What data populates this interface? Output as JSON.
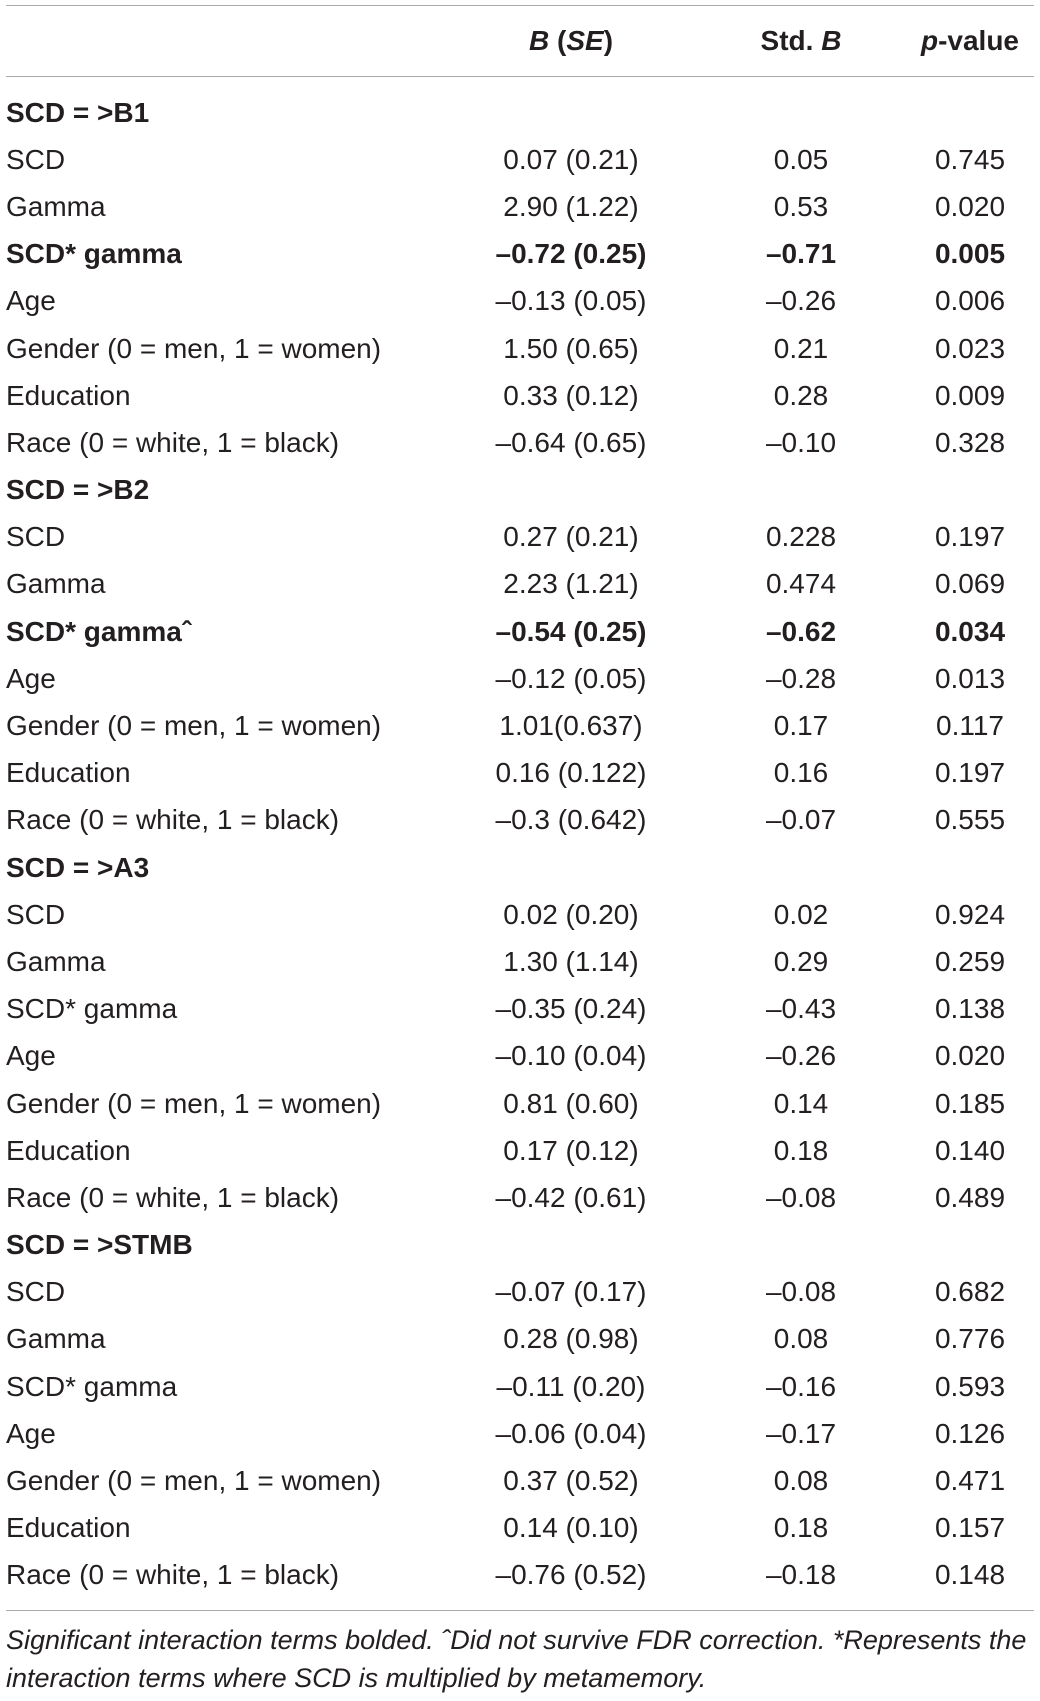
{
  "table": {
    "columns": [
      {
        "parts": []
      },
      {
        "parts": [
          {
            "text": "B",
            "italic": true
          },
          {
            "text": " ("
          },
          {
            "text": "SE",
            "italic": true
          },
          {
            "text": ")"
          }
        ]
      },
      {
        "parts": [
          {
            "text": "Std. "
          },
          {
            "text": "B",
            "italic": true
          }
        ]
      },
      {
        "parts": [
          {
            "text": "p",
            "italic": true
          },
          {
            "text": "-value"
          }
        ]
      }
    ],
    "sections": [
      {
        "title": "SCD = >B1",
        "rows": [
          {
            "label": "SCD",
            "b_se": "0.07 (0.21)",
            "std_b": "0.05",
            "p": "0.745"
          },
          {
            "label": "Gamma",
            "b_se": "2.90 (1.22)",
            "std_b": "0.53",
            "p": "0.020"
          },
          {
            "label": "SCD* gamma",
            "b_se": "–0.72 (0.25)",
            "std_b": "–0.71",
            "p": "0.005",
            "bold": true
          },
          {
            "label": "Age",
            "b_se": "–0.13 (0.05)",
            "std_b": "–0.26",
            "p": "0.006"
          },
          {
            "label": "Gender (0 = men, 1 = women)",
            "b_se": "1.50 (0.65)",
            "std_b": "0.21",
            "p": "0.023"
          },
          {
            "label": "Education",
            "b_se": "0.33 (0.12)",
            "std_b": "0.28",
            "p": "0.009"
          },
          {
            "label": "Race (0 = white, 1 = black)",
            "b_se": "–0.64 (0.65)",
            "std_b": "–0.10",
            "p": "0.328"
          }
        ]
      },
      {
        "title": "SCD = >B2",
        "rows": [
          {
            "label": "SCD",
            "b_se": "0.27 (0.21)",
            "std_b": "0.228",
            "p": "0.197"
          },
          {
            "label": "Gamma",
            "b_se": "2.23 (1.21)",
            "std_b": "0.474",
            "p": "0.069"
          },
          {
            "label": "SCD* gammaˆ",
            "b_se": "–0.54 (0.25)",
            "std_b": "–0.62",
            "p": "0.034",
            "bold": true
          },
          {
            "label": "Age",
            "b_se": "–0.12 (0.05)",
            "std_b": "–0.28",
            "p": "0.013"
          },
          {
            "label": "Gender (0 = men, 1 = women)",
            "b_se": "1.01(0.637)",
            "std_b": "0.17",
            "p": "0.117"
          },
          {
            "label": "Education",
            "b_se": "0.16 (0.122)",
            "std_b": "0.16",
            "p": "0.197"
          },
          {
            "label": "Race (0 = white, 1 = black)",
            "b_se": "–0.3 (0.642)",
            "std_b": "–0.07",
            "p": "0.555"
          }
        ]
      },
      {
        "title": "SCD = >A3",
        "rows": [
          {
            "label": "SCD",
            "b_se": "0.02 (0.20)",
            "std_b": "0.02",
            "p": "0.924"
          },
          {
            "label": "Gamma",
            "b_se": "1.30 (1.14)",
            "std_b": "0.29",
            "p": "0.259"
          },
          {
            "label": "SCD* gamma",
            "b_se": "–0.35 (0.24)",
            "std_b": "–0.43",
            "p": "0.138"
          },
          {
            "label": "Age",
            "b_se": "–0.10 (0.04)",
            "std_b": "–0.26",
            "p": "0.020"
          },
          {
            "label": "Gender (0 = men, 1 = women)",
            "b_se": "0.81 (0.60)",
            "std_b": "0.14",
            "p": "0.185"
          },
          {
            "label": "Education",
            "b_se": "0.17 (0.12)",
            "std_b": "0.18",
            "p": "0.140"
          },
          {
            "label": "Race (0 = white, 1 = black)",
            "b_se": "–0.42 (0.61)",
            "std_b": "–0.08",
            "p": "0.489"
          }
        ]
      },
      {
        "title": "SCD = >STMB",
        "rows": [
          {
            "label": "SCD",
            "b_se": "–0.07 (0.17)",
            "std_b": "–0.08",
            "p": "0.682"
          },
          {
            "label": "Gamma",
            "b_se": "0.28 (0.98)",
            "std_b": "0.08",
            "p": "0.776"
          },
          {
            "label": "SCD* gamma",
            "b_se": "–0.11 (0.20)",
            "std_b": "–0.16",
            "p": "0.593"
          },
          {
            "label": "Age",
            "b_se": "–0.06 (0.04)",
            "std_b": "–0.17",
            "p": "0.126"
          },
          {
            "label": "Gender (0 = men, 1 = women)",
            "b_se": "0.37 (0.52)",
            "std_b": "0.08",
            "p": "0.471"
          },
          {
            "label": "Education",
            "b_se": "0.14 (0.10)",
            "std_b": "0.18",
            "p": "0.157"
          },
          {
            "label": "Race (0 = white, 1 = black)",
            "b_se": "–0.76 (0.52)",
            "std_b": "–0.18",
            "p": "0.148"
          }
        ]
      }
    ],
    "footnote": "Significant interaction terms bolded. ˆDid not survive FDR correction. *Represents the interaction terms where SCD is multiplied by metamemory."
  }
}
